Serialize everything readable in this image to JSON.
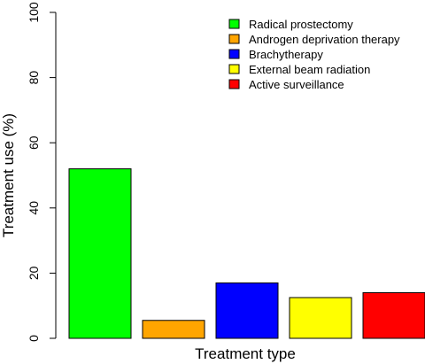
{
  "chart_data": {
    "type": "bar",
    "title": "",
    "xlabel": "Treatment type",
    "ylabel": "Treatment use (%)",
    "ylim": [
      0,
      100
    ],
    "yticks": [
      0,
      20,
      40,
      60,
      80,
      100
    ],
    "grid": false,
    "legend_position": "top-right",
    "categories": [
      "Radical prostectomy",
      "Androgen deprivation therapy",
      "Brachytherapy",
      "External beam radiation",
      "Active surveillance"
    ],
    "values": [
      52,
      5.5,
      17,
      12.5,
      14
    ],
    "colors": [
      "#00ff00",
      "#ffa500",
      "#0000ff",
      "#ffff00",
      "#ff0000"
    ]
  }
}
